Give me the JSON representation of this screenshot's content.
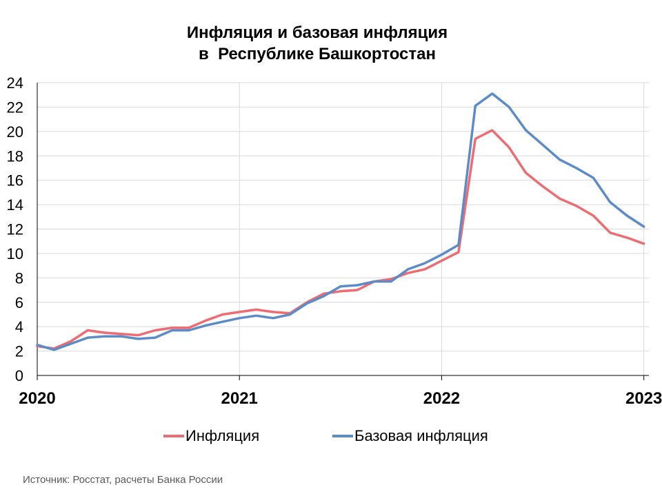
{
  "title_line1": "Инфляция и базовая инфляция",
  "title_line2": "в  Республике Башкортостан",
  "source": "Источник: Росстат, расчеты Банка России",
  "colors": {
    "inflation": "#EE6B72",
    "core": "#5B8BC9",
    "grid": "#D9D9D9"
  },
  "chart_data": {
    "type": "line",
    "xlabel": "",
    "ylabel": "",
    "ylim": [
      0,
      24
    ],
    "yticks": [
      "0",
      "2",
      "4",
      "6",
      "8",
      "10",
      "12",
      "14",
      "16",
      "18",
      "20",
      "22",
      "24"
    ],
    "xticks": [
      {
        "label": "2020",
        "x": 0
      },
      {
        "label": "2021",
        "x": 12
      },
      {
        "label": "2022",
        "x": 24
      },
      {
        "label": "2023",
        "x": 36
      }
    ],
    "grid": true,
    "legend_position": "bottom",
    "x": [
      0,
      1,
      2,
      3,
      4,
      5,
      6,
      7,
      8,
      9,
      10,
      11,
      12,
      13,
      14,
      15,
      16,
      17,
      18,
      19,
      20,
      21,
      22,
      23,
      24,
      25,
      26,
      27,
      28,
      29,
      30,
      31,
      32,
      33,
      34,
      35,
      36
    ],
    "series": [
      {
        "name": "Инфляция",
        "color": "#EE6B72",
        "values": [
          2.4,
          2.2,
          2.8,
          3.7,
          3.5,
          3.4,
          3.3,
          3.7,
          3.9,
          3.9,
          4.5,
          5.0,
          5.2,
          5.4,
          5.2,
          5.1,
          6.0,
          6.7,
          6.9,
          7.0,
          7.7,
          7.9,
          8.4,
          8.7,
          9.4,
          10.1,
          19.4,
          20.1,
          18.7,
          16.6,
          15.5,
          14.5,
          13.9,
          13.1,
          11.7,
          11.3,
          10.8
        ]
      },
      {
        "name": "Базовая инфляция",
        "color": "#5B8BC9",
        "values": [
          2.5,
          2.1,
          2.6,
          3.1,
          3.2,
          3.2,
          3.0,
          3.1,
          3.7,
          3.7,
          4.1,
          4.4,
          4.7,
          4.9,
          4.7,
          5.0,
          5.9,
          6.5,
          7.3,
          7.4,
          7.7,
          7.7,
          8.7,
          9.2,
          9.9,
          10.7,
          22.1,
          23.1,
          22.0,
          20.1,
          18.9,
          17.7,
          17.0,
          16.2,
          14.2,
          13.1,
          12.2
        ]
      }
    ]
  }
}
